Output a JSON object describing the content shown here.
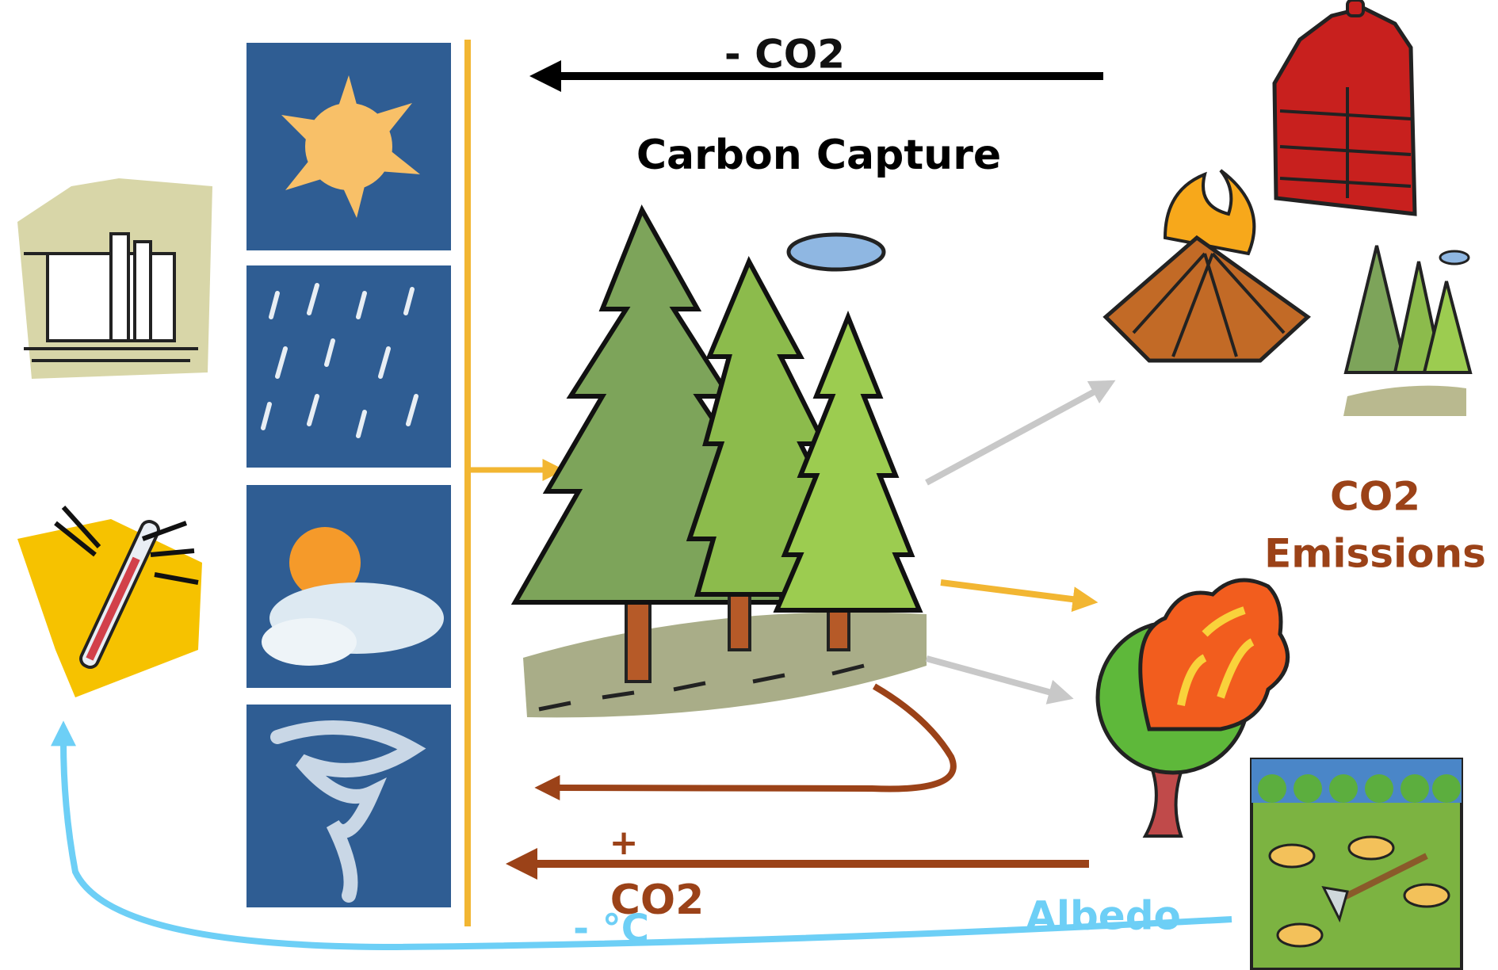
{
  "top_arrow_label": "- CO2",
  "title": "Carbon Capture",
  "emissions_label": {
    "line1": "CO2",
    "line2": "Emissions"
  },
  "bottom_arrow_label": {
    "sign": "+",
    "text": "CO2"
  },
  "albedo_label": "Albedo",
  "temperature_label": "- °C"
}
